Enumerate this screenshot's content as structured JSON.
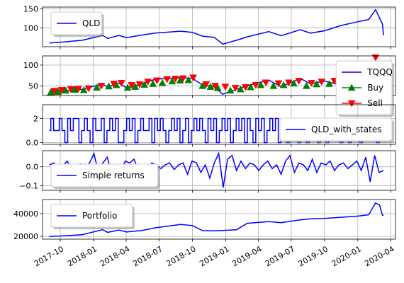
{
  "colors": {
    "series": "#0000ff",
    "buy": "#008000",
    "sell": "#ff0000",
    "grid": "#b0b0b0",
    "axis": "#000000"
  },
  "x_axis": {
    "type": "date",
    "range": [
      "2017-08-13",
      "2020-04-14"
    ],
    "ticks": [
      {
        "date": "2017-10-01",
        "label": "2017-10"
      },
      {
        "date": "2018-01-01",
        "label": "2018-01"
      },
      {
        "date": "2018-04-01",
        "label": "2018-04"
      },
      {
        "date": "2018-07-01",
        "label": "2018-07"
      },
      {
        "date": "2018-10-01",
        "label": "2018-10"
      },
      {
        "date": "2019-01-01",
        "label": "2019-01"
      },
      {
        "date": "2019-04-01",
        "label": "2019-04"
      },
      {
        "date": "2019-07-01",
        "label": "2019-07"
      },
      {
        "date": "2019-10-01",
        "label": "2019-10"
      },
      {
        "date": "2020-01-01",
        "label": "2020-01"
      },
      {
        "date": "2020-04-01",
        "label": "2020-04"
      }
    ]
  },
  "chart_data": [
    {
      "type": "line",
      "grid": true,
      "legend": "upper-left",
      "ylim": [
        50,
        155
      ],
      "yticks": [
        100,
        150
      ],
      "series": [
        {
          "name": "QLD",
          "x": [
            "2017-09-01",
            "2017-10-15",
            "2017-12-01",
            "2018-01-26",
            "2018-02-09",
            "2018-03-12",
            "2018-04-02",
            "2018-05-15",
            "2018-06-20",
            "2018-08-30",
            "2018-10-01",
            "2018-10-29",
            "2018-11-30",
            "2018-12-24",
            "2019-01-31",
            "2019-03-01",
            "2019-04-30",
            "2019-06-03",
            "2019-07-26",
            "2019-08-23",
            "2019-09-30",
            "2019-11-15",
            "2019-12-31",
            "2020-01-31",
            "2020-02-19",
            "2020-03-01",
            "2020-03-09",
            "2020-03-12"
          ],
          "values": [
            60,
            63,
            67,
            80,
            72,
            80,
            74,
            81,
            86,
            91,
            88,
            78,
            75,
            57,
            67,
            76,
            90,
            79,
            95,
            86,
            92,
            106,
            116,
            122,
            148,
            126,
            110,
            80
          ]
        }
      ]
    },
    {
      "type": "line",
      "grid": true,
      "legend": "upper-right",
      "ylim": [
        27,
        122
      ],
      "yticks": [
        50,
        100
      ],
      "series": [
        {
          "name": "TQQQ",
          "x": [
            "2017-09-01",
            "2017-10-15",
            "2017-12-01",
            "2018-01-26",
            "2018-02-09",
            "2018-03-12",
            "2018-04-02",
            "2018-05-15",
            "2018-06-20",
            "2018-08-30",
            "2018-10-01",
            "2018-10-29",
            "2018-11-30",
            "2018-12-24",
            "2019-01-31",
            "2019-03-01",
            "2019-04-30",
            "2019-06-03",
            "2019-07-26",
            "2019-08-23",
            "2019-09-30",
            "2019-10-31",
            "2019-12-01",
            "2020-01-01"
          ],
          "values": [
            35,
            38,
            42,
            55,
            47,
            57,
            45,
            55,
            66,
            70,
            68,
            52,
            48,
            30,
            42,
            50,
            64,
            48,
            68,
            55,
            62,
            55,
            60,
            57
          ]
        }
      ],
      "markers": [
        {
          "name": "Buy",
          "shape": "triangle-up",
          "x": [
            "2017-09-05",
            "2017-09-25",
            "2017-10-16",
            "2017-11-10",
            "2017-12-05",
            "2018-01-10",
            "2018-02-12",
            "2018-03-05",
            "2018-04-05",
            "2018-04-26",
            "2018-05-21",
            "2018-06-14",
            "2018-07-10",
            "2018-08-06",
            "2018-08-28",
            "2018-09-20",
            "2018-10-29",
            "2018-11-20",
            "2018-12-10",
            "2019-01-14",
            "2019-02-11",
            "2019-03-11",
            "2019-04-08",
            "2019-05-13",
            "2019-06-10",
            "2019-07-08",
            "2019-08-12",
            "2019-09-09",
            "2019-10-14",
            "2019-11-11",
            "2019-12-09",
            "2020-01-06"
          ],
          "values": [
            35,
            36,
            39,
            41,
            40,
            46,
            49,
            52,
            46,
            48,
            53,
            55,
            57,
            61,
            63,
            64,
            50,
            48,
            45,
            39,
            42,
            47,
            52,
            50,
            52,
            56,
            50,
            54,
            55,
            58,
            60,
            58
          ]
        },
        {
          "name": "Sell",
          "shape": "triangle-down",
          "x": [
            "2017-09-15",
            "2017-10-05",
            "2017-10-30",
            "2017-11-20",
            "2017-12-18",
            "2018-01-22",
            "2018-02-26",
            "2018-03-19",
            "2018-04-16",
            "2018-05-08",
            "2018-05-31",
            "2018-06-25",
            "2018-07-23",
            "2018-08-15",
            "2018-09-05",
            "2018-10-03",
            "2018-11-08",
            "2018-12-03",
            "2018-12-31",
            "2019-01-28",
            "2019-02-25",
            "2019-03-25",
            "2019-04-22",
            "2019-05-27",
            "2019-06-24",
            "2019-07-22",
            "2019-08-26",
            "2019-09-23",
            "2019-10-28",
            "2019-11-25",
            "2019-12-23",
            "2020-02-19"
          ],
          "values": [
            38,
            40,
            42,
            43,
            44,
            50,
            55,
            57,
            52,
            54,
            60,
            63,
            66,
            67,
            68,
            70,
            54,
            50,
            48,
            45,
            47,
            52,
            58,
            56,
            58,
            62,
            57,
            60,
            62,
            64,
            66,
            118
          ]
        }
      ],
      "legend_entries": [
        "TQQQ",
        "Buy",
        "Sell"
      ]
    },
    {
      "type": "line",
      "grid": true,
      "legend": "lower-right",
      "ylim": [
        -0.15,
        3.15
      ],
      "yticks": [
        0,
        2
      ],
      "series": [
        {
          "name": "QLD_with_states",
          "x_start": "2017-09-01",
          "x_end": "2020-03-12",
          "states": [
            1,
            2,
            1,
            1,
            2,
            1,
            0,
            2,
            1,
            2,
            2,
            0,
            1,
            2,
            1,
            0,
            2,
            1,
            1,
            2,
            0,
            1,
            2,
            1,
            2,
            0,
            0,
            1,
            2,
            1,
            2,
            0,
            1,
            2,
            1,
            1,
            2,
            0,
            2,
            1,
            2,
            1,
            0,
            1,
            2,
            1,
            2,
            0,
            1,
            2,
            0,
            1,
            2,
            1,
            2,
            1,
            0,
            2,
            1,
            2,
            0,
            1,
            2,
            1,
            2,
            0,
            1,
            2,
            1,
            2,
            0,
            2,
            1,
            0,
            2,
            1,
            2,
            0,
            1,
            2,
            1,
            2,
            0,
            1,
            2,
            0,
            2,
            1,
            2,
            0,
            1,
            2,
            0,
            2,
            1,
            2,
            0,
            1,
            2,
            0,
            1,
            2,
            1,
            2,
            0,
            1,
            2,
            0,
            2,
            1,
            2,
            0,
            1,
            2,
            1,
            1,
            2,
            0,
            1,
            2
          ]
        }
      ]
    },
    {
      "type": "line",
      "grid": true,
      "legend": "lower-left",
      "ylim": [
        -0.125,
        0.085
      ],
      "yticks": [
        -0.1,
        0.0
      ],
      "series": [
        {
          "name": "Simple returns",
          "x_start": "2017-09-01",
          "x_end": "2020-03-12",
          "values": [
            0.01,
            0.02,
            -0.01,
            0.005,
            0.03,
            -0.02,
            0.01,
            0.015,
            -0.005,
            0.02,
            0.07,
            -0.03,
            0.02,
            0.05,
            -0.04,
            0.01,
            -0.02,
            0.03,
            0.02,
            0.04,
            -0.02,
            0.01,
            -0.01,
            0.02,
            0.01,
            -0.01,
            0.01,
            0.02,
            -0.015,
            0.01,
            0.02,
            -0.04,
            0.03,
            0.02,
            -0.03,
            0.01,
            -0.06,
            0.02,
            0.07,
            -0.11,
            0.04,
            0.06,
            -0.02,
            0.03,
            -0.01,
            0.02,
            0.01,
            -0.02,
            0.01,
            0.03,
            -0.01,
            0.01,
            -0.04,
            0.03,
            0.06,
            -0.03,
            0.02,
            0.01,
            -0.02,
            0.04,
            -0.03,
            0.02,
            0.01,
            0.03,
            -0.02,
            0.01,
            0.02,
            -0.01,
            0.01,
            0.03,
            -0.02,
            0.05,
            -0.08,
            0.06,
            -0.03,
            -0.02
          ]
        }
      ]
    },
    {
      "type": "line",
      "grid": true,
      "legend": "upper-left",
      "ylim": [
        17500,
        52500
      ],
      "yticks": [
        20000,
        40000
      ],
      "series": [
        {
          "name": "Portfolio",
          "x": [
            "2017-09-01",
            "2017-10-15",
            "2017-12-01",
            "2018-01-26",
            "2018-02-09",
            "2018-03-12",
            "2018-04-02",
            "2018-05-15",
            "2018-06-20",
            "2018-08-30",
            "2018-10-01",
            "2018-10-29",
            "2018-11-30",
            "2018-12-24",
            "2019-01-31",
            "2019-03-01",
            "2019-04-30",
            "2019-06-03",
            "2019-07-26",
            "2019-08-23",
            "2019-09-30",
            "2019-11-15",
            "2019-12-31",
            "2020-01-31",
            "2020-02-19",
            "2020-03-01",
            "2020-03-09",
            "2020-03-12"
          ],
          "values": [
            19800,
            20500,
            21500,
            25800,
            23500,
            25500,
            23800,
            25200,
            27500,
            30500,
            29500,
            25000,
            24800,
            25200,
            25800,
            31500,
            33000,
            32000,
            34500,
            35500,
            35800,
            36800,
            37800,
            39000,
            49500,
            47500,
            38500,
            38500
          ]
        }
      ]
    }
  ]
}
